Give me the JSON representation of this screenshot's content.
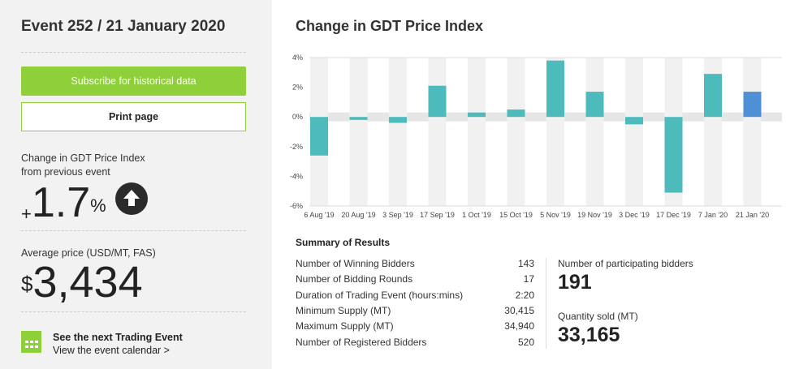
{
  "event_title": "Event 252 / 21 January 2020",
  "buttons": {
    "subscribe": "Subscribe for historical data",
    "print": "Print page"
  },
  "change": {
    "label1": "Change in GDT Price Index",
    "label2": "from previous event",
    "sign": "+",
    "value": "1.7",
    "unit": "%"
  },
  "avg": {
    "label": "Average price (USD/MT, FAS)",
    "currency": "$",
    "value": "3,434"
  },
  "next": {
    "title": "See the next Trading Event",
    "link": "View the event calendar >"
  },
  "chart_heading": "Change in GDT Price Index",
  "chart_data": {
    "type": "bar",
    "title": "Change in GDT Price Index",
    "ylabel": "",
    "xlabel": "",
    "categories": [
      "6 Aug '19",
      "20 Aug '19",
      "3 Sep '19",
      "17 Sep '19",
      "1 Oct '19",
      "15 Oct '19",
      "5 Nov '19",
      "19 Nov '19",
      "3 Dec '19",
      "17 Dec '19",
      "7 Jan '20",
      "21 Jan '20"
    ],
    "values": [
      -2.6,
      -0.2,
      -0.4,
      2.1,
      0.3,
      0.5,
      3.8,
      1.7,
      -0.5,
      -5.1,
      2.9,
      1.7
    ],
    "ylim": [
      -6,
      4
    ],
    "yticks": [
      "4%",
      "2%",
      "0%",
      "-2%",
      "-4%",
      "-6%"
    ],
    "ytick_values": [
      4,
      2,
      0,
      -2,
      -4,
      -6
    ],
    "colors": {
      "bar": "#4dbbbb",
      "highlight": "#4f8fd6"
    }
  },
  "summary": {
    "title": "Summary of Results",
    "rows": [
      {
        "label": "Number of Winning Bidders",
        "value": "143"
      },
      {
        "label": "Number of Bidding Rounds",
        "value": "17"
      },
      {
        "label": "Duration of Trading Event (hours:mins)",
        "value": "2:20"
      },
      {
        "label": "Minimum Supply (MT)",
        "value": "30,415"
      },
      {
        "label": "Maximum Supply (MT)",
        "value": "34,940"
      },
      {
        "label": "Number of Registered Bidders",
        "value": "520"
      }
    ],
    "participating_label": "Number of participating bidders",
    "participating": "191",
    "sold_label": "Quantity sold (MT)",
    "sold": "33,165"
  }
}
